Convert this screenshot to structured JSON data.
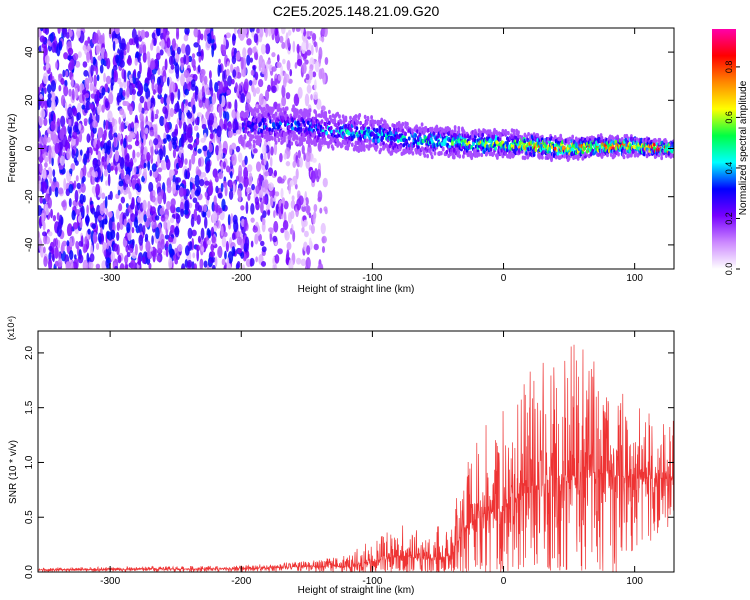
{
  "title": "C2E5.2025.148.21.09.G20",
  "chart_data": [
    {
      "type": "heatmap",
      "xlabel": "Height of straight line (km)",
      "ylabel": "Frequency (Hz)",
      "xlim": [
        -355,
        130
      ],
      "ylim": [
        -50,
        50
      ],
      "xticks": [
        -300,
        -200,
        -100,
        0,
        100
      ],
      "yticks": [
        -40,
        -20,
        0,
        20,
        40
      ],
      "colorbar": {
        "label": "Normalized spectral amplitude",
        "range": [
          0.0,
          0.95
        ],
        "ticks": [
          "0.0",
          "0.2",
          "0.4",
          "0.6",
          "0.8"
        ],
        "tick_values": [
          0.0,
          0.2,
          0.4,
          0.6,
          0.8
        ],
        "colors": [
          "#ffffff",
          "#cc88ff",
          "#7700ff",
          "#0000ff",
          "#00ffff",
          "#00ff44",
          "#ffff00",
          "#ff8800",
          "#ff0000",
          "#ff00aa"
        ]
      },
      "signal_trace": {
        "description_x": [
          -200,
          -175,
          -150,
          -125,
          -100,
          -75,
          -50,
          -25,
          0,
          25,
          50,
          75,
          100,
          125
        ],
        "center_freq": [
          9,
          10,
          9,
          7,
          6,
          4,
          3,
          2,
          2,
          1,
          0,
          1,
          1,
          0
        ],
        "peak_amplitude": [
          0.35,
          0.4,
          0.4,
          0.45,
          0.5,
          0.5,
          0.55,
          0.6,
          0.75,
          0.8,
          0.85,
          0.9,
          0.95,
          0.9
        ]
      },
      "noise_region_x": [
        -355,
        -135
      ]
    },
    {
      "type": "line",
      "xlabel": "Height of straight line (km)",
      "ylabel": "SNR (10 * v/v)",
      "multiplier": "(x10⁴)",
      "xlim": [
        -355,
        130
      ],
      "ylim": [
        0.0,
        2.2
      ],
      "xticks": [
        -300,
        -200,
        -100,
        0,
        100
      ],
      "yticks": [
        "0.0",
        "0.5",
        "1.0",
        "1.5",
        "2.0"
      ],
      "ytick_values": [
        0.0,
        0.5,
        1.0,
        1.5,
        2.0
      ],
      "color": "#ee3333",
      "envelope": {
        "x": [
          -355,
          -200,
          -150,
          -120,
          -100,
          -80,
          -60,
          -40,
          -30,
          -20,
          0,
          20,
          40,
          60,
          80,
          100,
          120,
          130
        ],
        "baseline": [
          0.02,
          0.03,
          0.05,
          0.05,
          0.1,
          0.15,
          0.12,
          0.15,
          0.4,
          0.5,
          0.6,
          0.75,
          0.85,
          0.9,
          0.9,
          0.85,
          0.85,
          0.85
        ],
        "peak": [
          0.04,
          0.06,
          0.1,
          0.15,
          0.3,
          0.45,
          0.35,
          0.5,
          1.0,
          1.3,
          1.5,
          1.9,
          2.1,
          2.1,
          2.0,
          1.6,
          1.4,
          1.4
        ]
      }
    }
  ]
}
